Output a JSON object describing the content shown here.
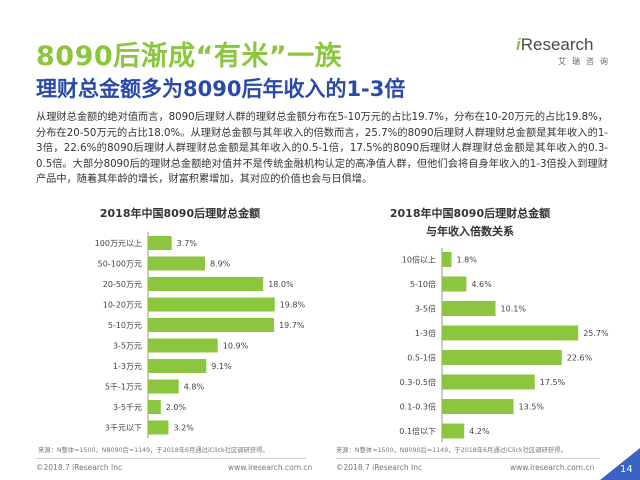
{
  "header": {
    "title": "8090后渐成“有米”一族",
    "subtitle": "理财总金额多为8090后年收入的1-3倍"
  },
  "logo": {
    "prefix": "i",
    "brand": "Research",
    "cn": "艾瑞咨询"
  },
  "body_text": "从理财总金额的绝对值而言，8090后理财人群的理财总金额分布在5-10万元的占比19.7%，分布在10-20万元的占比19.8%，分布在20-50万元的占比18.0%。从理财总金额与其年收入的倍数而言，25.7%的8090后理财人群理财总金额是其年收入的1-3倍，22.6%的8090后理财人群理财总金额是其年收入的0.5-1倍，17.5%的8090后理财人群理财总金额是其年收入的0.3-0.5倍。大部分8090后的理财总金额绝对值并不是传统金融机构认定的高净值人群，但他们会将自身年收入的1-3倍投入到理财产品中，随着其年龄的增长，财富积累增加，其对应的价值也会与日俱增。",
  "colors": {
    "bar": "#8cc63f",
    "title_green": "#8cc63f",
    "title_blue": "#2a4aa8",
    "page_tab": "#3a62c2"
  },
  "chart_data": [
    {
      "type": "bar",
      "orientation": "horizontal",
      "title": "2018年中国8090后理财总金额",
      "categories": [
        "100万元以上",
        "50-100万元",
        "20-50万元",
        "10-20万元",
        "5-10万元",
        "3-5万元",
        "1-3万元",
        "5千-1万元",
        "3-5千元",
        "3千元以下"
      ],
      "values": [
        3.7,
        8.9,
        18.0,
        19.8,
        19.7,
        10.9,
        9.1,
        4.8,
        2.0,
        3.2
      ],
      "value_labels": [
        "3.7%",
        "8.9%",
        "18.0%",
        "19.8%",
        "19.7%",
        "10.9%",
        "9.1%",
        "4.8%",
        "2.0%",
        "3.2%"
      ],
      "unit": "%",
      "note": "来源：N整体=1500，N8090后=1149，于2018年6月通过iClick社区调研获得。"
    },
    {
      "type": "bar",
      "orientation": "horizontal",
      "title": "2018年中国8090后理财总金额与年收入倍数关系",
      "title_lines": [
        "2018年中国8090后理财总金额",
        "与年收入倍数关系"
      ],
      "categories": [
        "10倍以上",
        "5-10倍",
        "3-5倍",
        "1-3倍",
        "0.5-1倍",
        "0.3-0.5倍",
        "0.1-0.3倍",
        "0.1倍以下"
      ],
      "values": [
        1.8,
        4.6,
        10.1,
        25.7,
        22.6,
        17.5,
        13.5,
        4.2
      ],
      "value_labels": [
        "1.8%",
        "4.6%",
        "10.1%",
        "25.7%",
        "22.6%",
        "17.5%",
        "13.5%",
        "4.2%"
      ],
      "unit": "%",
      "note": "来源：N整体=1500，N8090后=1149，于2018年6月通过iClick社区调研获得。"
    }
  ],
  "footer": {
    "left_copyright": "©2018.7 iResearch Inc",
    "left_url": "www.iresearch.com.cn",
    "right_copyright": "©2018.7 iResearch Inc",
    "right_url": "www.iresearch.com.cn",
    "page_number": "14"
  }
}
